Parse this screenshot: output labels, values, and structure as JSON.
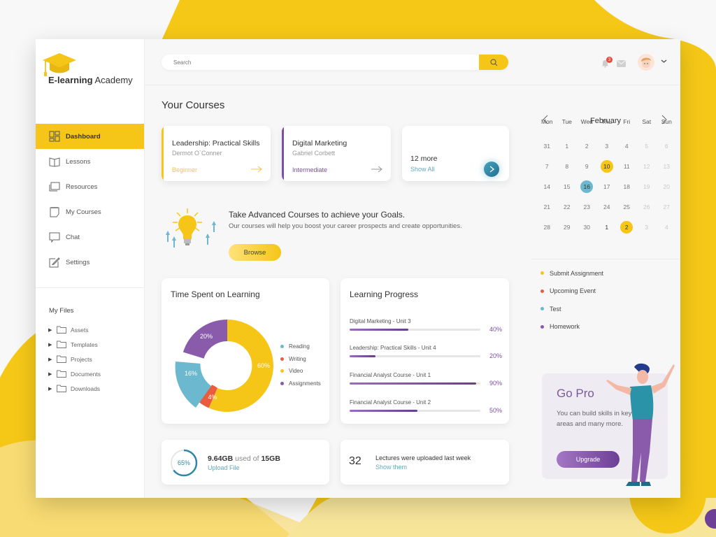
{
  "app": {
    "logo_bold": "E-learning",
    "logo_light": " Academy"
  },
  "sidebar": {
    "items": [
      {
        "label": "Dashboard",
        "icon": "dashboard-icon",
        "active": true
      },
      {
        "label": "Lessons",
        "icon": "book-icon"
      },
      {
        "label": "Resources",
        "icon": "resources-icon"
      },
      {
        "label": "My Courses",
        "icon": "notepad-icon"
      },
      {
        "label": "Chat",
        "icon": "chat-icon"
      },
      {
        "label": "Settings",
        "icon": "edit-icon"
      }
    ],
    "files_title": "My Files",
    "files": [
      "Assets",
      "Templates",
      "Projects",
      "Documents",
      "Downloads"
    ]
  },
  "topbar": {
    "search_placeholder": "Search",
    "notification_count": "3"
  },
  "courses": {
    "heading": "Your Courses",
    "cards": [
      {
        "title": "Leadership: Practical Skills",
        "author": "Dermot O`Conner",
        "level": "Beginner",
        "color": "#f5c518",
        "level_color": "#f0c44a"
      },
      {
        "title": "Digital Marketing",
        "author": "Gabriel Corbett",
        "level": "Intermediate",
        "color": "#7b4fa3",
        "level_color": "#7b4fa3"
      }
    ],
    "more_count": "12 more",
    "show_all": "Show All"
  },
  "promo": {
    "title": "Take Advanced Courses to achieve your Goals.",
    "subtitle": "Our courses will help you boost your career prospects and create opportunities.",
    "button": "Browse"
  },
  "time_spent": {
    "title": "Time Spent on Learning",
    "legend": [
      {
        "label": "Reading",
        "color": "#6cb8cf"
      },
      {
        "label": "Writing",
        "color": "#e95c3d"
      },
      {
        "label": "Video",
        "color": "#f5c518"
      },
      {
        "label": "Assignments",
        "color": "#8a5bab"
      }
    ],
    "labels": {
      "video": "60%",
      "assignments": "20%",
      "reading": "16%",
      "writing": "4%"
    }
  },
  "chart_data": {
    "type": "pie",
    "title": "Time Spent on Learning",
    "categories": [
      "Reading",
      "Writing",
      "Video",
      "Assignments"
    ],
    "values": [
      16,
      4,
      60,
      20
    ],
    "colors": [
      "#6cb8cf",
      "#e95c3d",
      "#f5c518",
      "#8a5bab"
    ],
    "legend_position": "right",
    "donut": true
  },
  "progress": {
    "title": "Learning Progress",
    "items": [
      {
        "label": "Digital Marketing - Unit 3",
        "value": 40,
        "pct": "40%"
      },
      {
        "label": "Leadership: Practical Skills - Unit 4",
        "value": 20,
        "pct": "20%"
      },
      {
        "label": "Financial Analyst Course - Unit 1",
        "value": 90,
        "pct": "90%"
      },
      {
        "label": "Financial Analyst Course - Unit 2",
        "value": 50,
        "pct": "50%"
      }
    ]
  },
  "storage": {
    "percent": "65%",
    "used": "9.64GB",
    "used_of": " used of ",
    "total": "15GB",
    "link": "Upload File"
  },
  "lectures": {
    "count": "32",
    "text": "Lectures were uploaded last week",
    "link": "Show them"
  },
  "calendar": {
    "month": "February",
    "weekdays": [
      "Mon",
      "Tue",
      "Wed",
      "Thu",
      "Fri",
      "Sat",
      "Sun"
    ],
    "weeks": [
      [
        "31",
        "1",
        "2",
        "3",
        "4",
        "5",
        "6"
      ],
      [
        "7",
        "8",
        "9",
        "10",
        "11",
        "12",
        "13"
      ],
      [
        "14",
        "15",
        "16",
        "17",
        "18",
        "19",
        "20"
      ],
      [
        "21",
        "22",
        "23",
        "24",
        "25",
        "26",
        "27"
      ],
      [
        "28",
        "29",
        "30",
        "1",
        "2",
        "3",
        "4"
      ]
    ],
    "highlights": {
      "10": "#f5c518",
      "16": "#6cb8cf",
      "2": "#f5c518"
    }
  },
  "events": [
    {
      "label": "Submit Assignment",
      "color": "#f5c518"
    },
    {
      "label": "Upcoming Event",
      "color": "#e95c3d"
    },
    {
      "label": "Test",
      "color": "#6cb8cf"
    },
    {
      "label": "Homework",
      "color": "#8a5bab"
    }
  ],
  "gopro": {
    "title": "Go Pro",
    "text": "You can build skills in key areas and many more.",
    "button": "Upgrade"
  }
}
